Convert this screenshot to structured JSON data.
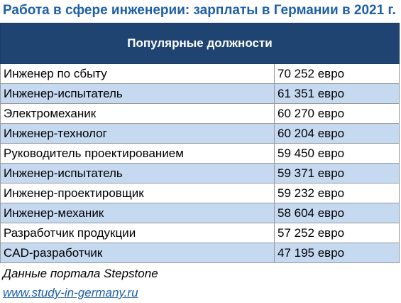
{
  "colors": {
    "title_text": "#1f5fa8",
    "header_bg": "#1f4472",
    "header_text": "#ffffff",
    "row_odd_bg": "#ffffff",
    "row_even_bg": "#c5d9f1",
    "link": "#1f5fa8"
  },
  "title": "Работа в сфере инженерии: зарплаты в Германии в 2021 г.",
  "table": {
    "header": "Популярные должности",
    "rows": [
      {
        "position": "Инженер по сбыту",
        "salary": "70 252 евро"
      },
      {
        "position": "Инженер-испытатель",
        "salary": "61 351 евро"
      },
      {
        "position": "Электромеханик",
        "salary": "60 270 евро"
      },
      {
        "position": "Инженер-технолог",
        "salary": "60 204 евро"
      },
      {
        "position": "Руководитель проектированием",
        "salary": "59 450 евро"
      },
      {
        "position": "Инженер-испытатель",
        "salary": "59 371 евро"
      },
      {
        "position": "Инженер-проектировщик",
        "salary": "59 232 евро"
      },
      {
        "position": "Инженер-механик",
        "salary": "58 604 евро"
      },
      {
        "position": "Разработчик продукции",
        "salary": "57 252 евро"
      },
      {
        "position": "CAD-разработчик",
        "salary": "47 195 евро"
      }
    ]
  },
  "footer": {
    "source": "Данные портала Stepstone",
    "link_text": "www.study-in-germany.ru"
  }
}
